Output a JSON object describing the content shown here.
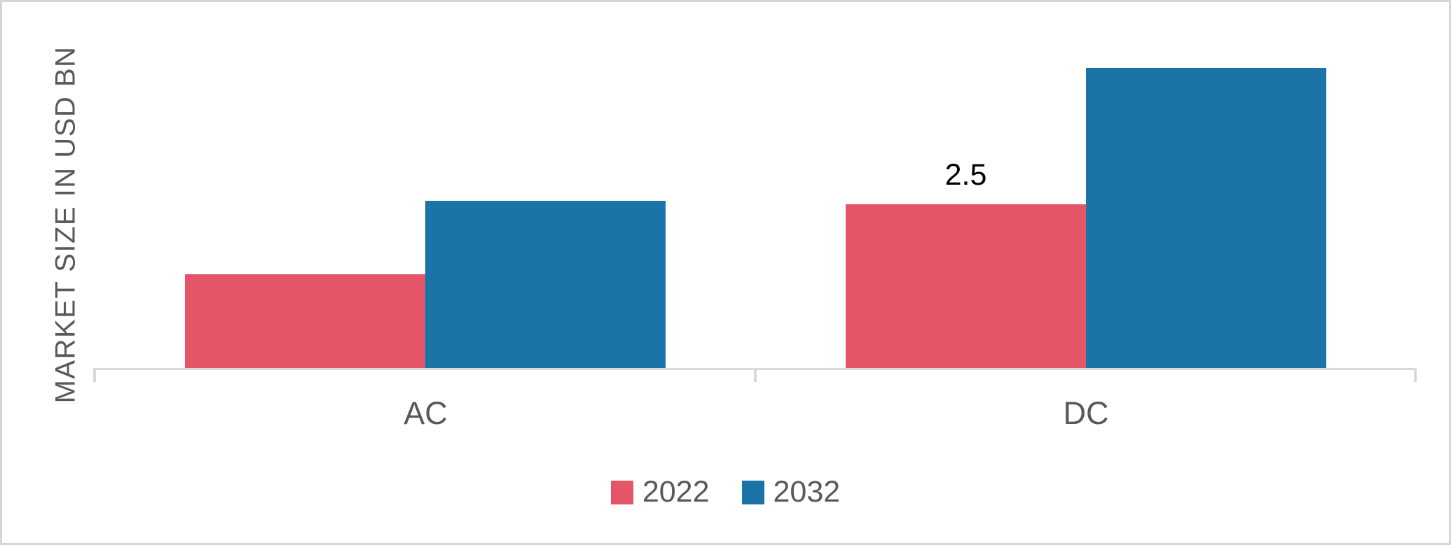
{
  "chart_data": {
    "type": "bar",
    "title": "",
    "ylabel": "MARKET SIZE IN USD BN",
    "xlabel": "",
    "categories": [
      "AC",
      "DC"
    ],
    "series": [
      {
        "name": "2022",
        "color": "#E45568",
        "values": [
          1.43,
          2.5
        ]
      },
      {
        "name": "2032",
        "color": "#1A74A8",
        "values": [
          2.55,
          4.58
        ]
      }
    ],
    "data_labels": [
      {
        "category": "DC",
        "series": "2022",
        "text": "2.5"
      }
    ],
    "ylim": [
      0,
      5.6
    ],
    "grid": false,
    "legend_position": "bottom",
    "axis_line_color": "#D9D9D9",
    "frame_color": "#D6D6D6",
    "text_color": "#595959",
    "data_label_color": "#000000"
  }
}
